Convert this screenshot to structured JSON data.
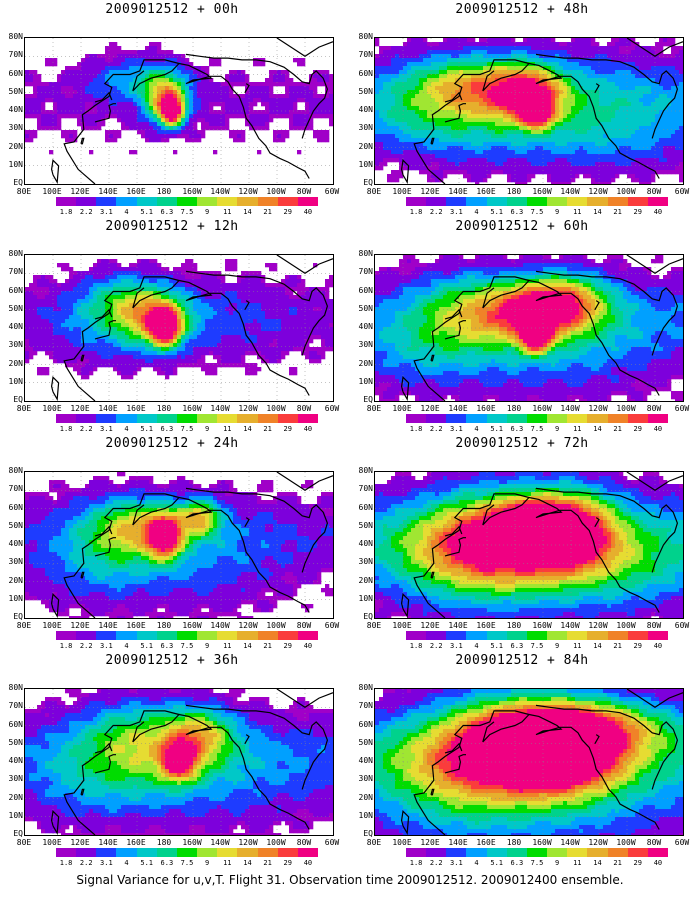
{
  "caption": "Signal Variance for u,v,T. Flight 31. Observation time 2009012512. 2009012400 ensemble.",
  "palette": [
    "#a000c8",
    "#7d00dc",
    "#1e3cff",
    "#00a0ff",
    "#00c8c8",
    "#00d28c",
    "#00dc00",
    "#a0e632",
    "#e6dc32",
    "#e6af2d",
    "#f08228",
    "#fa3c3c",
    "#f00082"
  ],
  "colorbar_labels": [
    "1.8",
    "2.2",
    "3.1",
    "4",
    "5.1",
    "6.3",
    "7.5",
    "9",
    "11",
    "14",
    "21",
    "29",
    "40"
  ],
  "lat_labels": [
    "80N",
    "70N",
    "60N",
    "50N",
    "40N",
    "30N",
    "20N",
    "10N",
    "EQ"
  ],
  "lon_labels": [
    "80E",
    "100E",
    "120E",
    "140E",
    "160E",
    "180",
    "160W",
    "140W",
    "120W",
    "100W",
    "80W",
    "60W"
  ],
  "chart_data": [
    {
      "type": "heatmap",
      "title": "2009012512 + 00h",
      "field": {
        "blobs": [
          [
            185,
            40,
            8,
            8,
            11
          ],
          [
            180,
            45,
            15,
            12,
            7
          ],
          [
            178,
            55,
            20,
            10,
            3
          ],
          [
            160,
            60,
            30,
            12,
            2
          ],
          [
            140,
            55,
            20,
            10,
            1
          ],
          [
            105,
            30,
            15,
            10,
            0
          ]
        ]
      }
    },
    {
      "type": "heatmap",
      "title": "2009012512 + 12h",
      "field": {
        "blobs": [
          [
            175,
            45,
            25,
            15,
            7
          ],
          [
            180,
            40,
            10,
            10,
            10
          ],
          [
            150,
            55,
            30,
            15,
            4
          ],
          [
            140,
            40,
            40,
            20,
            2
          ],
          [
            120,
            20,
            40,
            15,
            0
          ],
          [
            230,
            45,
            40,
            25,
            1
          ]
        ]
      }
    },
    {
      "type": "heatmap",
      "title": "2009012512 + 24h",
      "field": {
        "blobs": [
          [
            180,
            45,
            12,
            12,
            10
          ],
          [
            205,
            55,
            15,
            10,
            7
          ],
          [
            160,
            50,
            30,
            15,
            5
          ],
          [
            140,
            40,
            40,
            25,
            3
          ],
          [
            210,
            30,
            60,
            30,
            2
          ],
          [
            120,
            20,
            50,
            20,
            1
          ]
        ]
      }
    },
    {
      "type": "heatmap",
      "title": "2009012512 + 36h",
      "field": {
        "blobs": [
          [
            190,
            40,
            12,
            10,
            9
          ],
          [
            205,
            55,
            25,
            15,
            6
          ],
          [
            160,
            55,
            40,
            20,
            4
          ],
          [
            150,
            35,
            60,
            25,
            3
          ],
          [
            230,
            30,
            80,
            30,
            2
          ],
          [
            110,
            20,
            40,
            20,
            1
          ]
        ]
      }
    },
    {
      "type": "heatmap",
      "title": "2009012512 + 48h",
      "field": {
        "blobs": [
          [
            195,
            40,
            10,
            8,
            10
          ],
          [
            190,
            50,
            25,
            15,
            8
          ],
          [
            150,
            55,
            40,
            15,
            5
          ],
          [
            130,
            40,
            60,
            25,
            4
          ],
          [
            230,
            40,
            80,
            30,
            3
          ],
          [
            250,
            20,
            60,
            15,
            1
          ]
        ]
      }
    },
    {
      "type": "heatmap",
      "title": "2009012512 + 60h",
      "field": {
        "blobs": [
          [
            195,
            35,
            10,
            8,
            10
          ],
          [
            195,
            50,
            30,
            15,
            8
          ],
          [
            220,
            55,
            30,
            15,
            6
          ],
          [
            150,
            50,
            40,
            20,
            5
          ],
          [
            200,
            30,
            90,
            30,
            3
          ],
          [
            110,
            25,
            40,
            20,
            2
          ]
        ]
      }
    },
    {
      "type": "heatmap",
      "title": "2009012512 + 72h",
      "field": {
        "blobs": [
          [
            190,
            50,
            20,
            12,
            9
          ],
          [
            220,
            50,
            30,
            20,
            8
          ],
          [
            170,
            45,
            50,
            25,
            7
          ],
          [
            200,
            35,
            100,
            30,
            5
          ],
          [
            140,
            30,
            60,
            25,
            3
          ],
          [
            260,
            25,
            60,
            20,
            2
          ]
        ]
      }
    },
    {
      "type": "heatmap",
      "title": "2009012512 + 84h",
      "field": {
        "blobs": [
          [
            195,
            50,
            15,
            10,
            10
          ],
          [
            215,
            45,
            40,
            20,
            9
          ],
          [
            175,
            50,
            50,
            25,
            8
          ],
          [
            230,
            60,
            60,
            15,
            7
          ],
          [
            200,
            30,
            110,
            35,
            5
          ],
          [
            130,
            30,
            60,
            30,
            3
          ]
        ]
      }
    }
  ]
}
